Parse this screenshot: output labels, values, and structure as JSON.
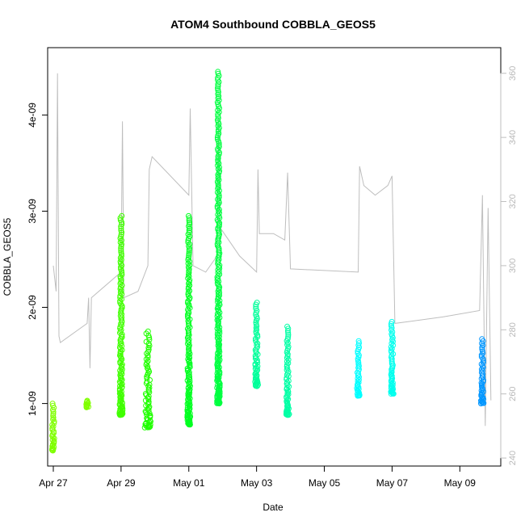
{
  "chart_data": {
    "type": "scatter",
    "title": "ATOM4 Southbound COBBLA_GEOS5",
    "xlabel": "Date",
    "ylabel": "COBBLA_GEOS5",
    "x_date_range": [
      "2016-04-26T20:00",
      "2016-05-10T05:00"
    ],
    "ylim": [
      3.5e-10,
      4.7e-09
    ],
    "x_ticks": [
      {
        "date": "2016-04-27",
        "label": "Apr 27"
      },
      {
        "date": "2016-04-29",
        "label": "Apr 29"
      },
      {
        "date": "2016-05-01",
        "label": "May 01"
      },
      {
        "date": "2016-05-03",
        "label": "May 03"
      },
      {
        "date": "2016-05-05",
        "label": "May 05"
      },
      {
        "date": "2016-05-07",
        "label": "May 07"
      },
      {
        "date": "2016-05-09",
        "label": "May 09"
      }
    ],
    "y_ticks": [
      {
        "value": 1e-09,
        "label": "1e-09"
      },
      {
        "value": 2e-09,
        "label": "2e-09"
      },
      {
        "value": 3e-09,
        "label": "3e-09"
      },
      {
        "value": 4e-09,
        "label": "4e-09"
      }
    ],
    "right_axis": {
      "label": "",
      "ylim": [
        237.5,
        368
      ],
      "color": "#bebebe",
      "ticks": [
        {
          "value": 240,
          "label": "240"
        },
        {
          "value": 260,
          "label": "260"
        },
        {
          "value": 280,
          "label": "280"
        },
        {
          "value": 300,
          "label": "300"
        },
        {
          "value": 320,
          "label": "320"
        },
        {
          "value": 340,
          "label": "340"
        },
        {
          "value": 360,
          "label": "360"
        }
      ]
    },
    "grid": false,
    "legend": "none",
    "marker": "open-circle",
    "series": [
      {
        "date": "2016-04-27T00:00",
        "color": "#7fff00",
        "ymin": 5.1e-10,
        "ymax": 1e-09
      },
      {
        "date": "2016-04-28T00:00",
        "color": "#80ff00",
        "ymin": 9.6e-10,
        "ymax": 1.03e-09
      },
      {
        "date": "2016-04-29T00:00",
        "color": "#40ff00",
        "ymin": 8.8e-10,
        "ymax": 2.95e-09
      },
      {
        "date": "2016-04-29T19:00",
        "color": "#20ff00",
        "ymin": 7.5e-10,
        "ymax": 1.75e-09
      },
      {
        "date": "2016-05-01T00:00",
        "color": "#00ff20",
        "ymin": 7.8e-10,
        "ymax": 2.95e-09
      },
      {
        "date": "2016-05-01T21:00",
        "color": "#00ff40",
        "ymin": 1e-09,
        "ymax": 4.45e-09
      },
      {
        "date": "2016-05-03T00:00",
        "color": "#00ff9a",
        "ymin": 1.18e-09,
        "ymax": 2.05e-09
      },
      {
        "date": "2016-05-03T22:00",
        "color": "#00ffa5",
        "ymin": 8.8e-10,
        "ymax": 1.8e-09
      },
      {
        "date": "2016-05-06T00:00",
        "color": "#00ffff",
        "ymin": 1.08e-09,
        "ymax": 1.65e-09
      },
      {
        "date": "2016-05-07T00:00",
        "color": "#00ffee",
        "ymin": 1.1e-09,
        "ymax": 1.85e-09
      },
      {
        "date": "2016-05-09T16:00",
        "color": "#0096ff",
        "ymin": 1e-09,
        "ymax": 1.67e-09
      }
    ],
    "secondary_line": {
      "color": "#bebebe",
      "points": [
        [
          "2016-04-27T00:00",
          300
        ],
        [
          "2016-04-27T02:00",
          292
        ],
        [
          "2016-04-27T03:00",
          360
        ],
        [
          "2016-04-27T04:00",
          278
        ],
        [
          "2016-04-27T05:00",
          276
        ],
        [
          "2016-04-28T00:00",
          282
        ],
        [
          "2016-04-28T01:00",
          290
        ],
        [
          "2016-04-28T02:00",
          268
        ],
        [
          "2016-04-28T03:00",
          290
        ],
        [
          "2016-04-29T00:00",
          298
        ],
        [
          "2016-04-29T01:00",
          345
        ],
        [
          "2016-04-29T02:00",
          290
        ],
        [
          "2016-04-29T12:00",
          292
        ],
        [
          "2016-04-29T19:00",
          300
        ],
        [
          "2016-04-29T20:00",
          330
        ],
        [
          "2016-04-29T22:00",
          334
        ],
        [
          "2016-05-01T00:00",
          322
        ],
        [
          "2016-05-01T01:00",
          349
        ],
        [
          "2016-05-01T03:00",
          300
        ],
        [
          "2016-05-01T12:00",
          298
        ],
        [
          "2016-05-01T20:00",
          303
        ],
        [
          "2016-05-01T21:00",
          346
        ],
        [
          "2016-05-01T22:00",
          312
        ],
        [
          "2016-05-02T12:00",
          303
        ],
        [
          "2016-05-03T00:00",
          298
        ],
        [
          "2016-05-03T01:00",
          330
        ],
        [
          "2016-05-03T02:00",
          310
        ],
        [
          "2016-05-03T12:00",
          310
        ],
        [
          "2016-05-03T20:00",
          308
        ],
        [
          "2016-05-03T22:00",
          329
        ],
        [
          "2016-05-04T00:00",
          299
        ],
        [
          "2016-05-06T00:00",
          298
        ],
        [
          "2016-05-06T01:00",
          331
        ],
        [
          "2016-05-06T04:00",
          325
        ],
        [
          "2016-05-06T12:00",
          322
        ],
        [
          "2016-05-06T21:00",
          325
        ],
        [
          "2016-05-07T00:00",
          328
        ],
        [
          "2016-05-07T02:00",
          282
        ],
        [
          "2016-05-08T12:00",
          284
        ],
        [
          "2016-05-09T14:00",
          286
        ],
        [
          "2016-05-09T16:00",
          322
        ],
        [
          "2016-05-09T18:00",
          250
        ],
        [
          "2016-05-09T20:00",
          318
        ],
        [
          "2016-05-09T22:00",
          258
        ]
      ]
    }
  }
}
